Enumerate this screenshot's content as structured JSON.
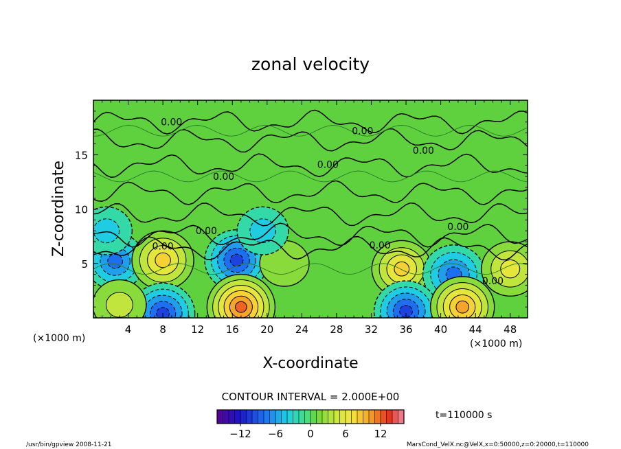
{
  "chart_data": {
    "type": "heatmap",
    "title": "zonal velocity",
    "xlabel": "X-coordinate",
    "ylabel": "Z-coordinate",
    "x_unit_left": "(×1000 m)",
    "x_unit_right": "(×1000 m)",
    "xlim": [
      0,
      50
    ],
    "ylim": [
      0,
      20
    ],
    "x_ticks": [
      4,
      8,
      12,
      16,
      20,
      24,
      28,
      32,
      36,
      40,
      44,
      48
    ],
    "y_ticks": [
      5,
      10,
      15
    ],
    "contour_interval_label": "CONTOUR INTERVAL = 2.000E+00",
    "contour_labels": [
      {
        "text": "0.00",
        "x": 9,
        "z": 18.0
      },
      {
        "text": "0.00",
        "x": 31,
        "z": 17.2
      },
      {
        "text": "0.00",
        "x": 38,
        "z": 15.4
      },
      {
        "text": "0.00",
        "x": 27,
        "z": 14.1
      },
      {
        "text": "0.00",
        "x": 15,
        "z": 13.0
      },
      {
        "text": "0.00",
        "x": 13,
        "z": 8.0
      },
      {
        "text": "0.00",
        "x": 42,
        "z": 8.4
      },
      {
        "text": "0.00",
        "x": 33,
        "z": 6.7
      },
      {
        "text": "0.00",
        "x": 8,
        "z": 6.6
      },
      {
        "text": "0.00",
        "x": 46,
        "z": 3.4
      }
    ],
    "features": [
      {
        "x": 2.5,
        "z": 5.2,
        "value": -7
      },
      {
        "x": 8.0,
        "z": 5.3,
        "value": 8
      },
      {
        "x": 16.5,
        "z": 5.3,
        "value": -9
      },
      {
        "x": 22.0,
        "z": 5.0,
        "value": 2
      },
      {
        "x": 35.5,
        "z": 4.5,
        "value": 7
      },
      {
        "x": 41.5,
        "z": 4.0,
        "value": -8
      },
      {
        "x": 48.0,
        "z": 4.5,
        "value": 6
      },
      {
        "x": 17.0,
        "z": 1.0,
        "value": 11
      },
      {
        "x": 8.0,
        "z": 0.4,
        "value": -9
      },
      {
        "x": 36.0,
        "z": 0.6,
        "value": -9
      },
      {
        "x": 42.5,
        "z": 1.0,
        "value": 9
      },
      {
        "x": 3.0,
        "z": 1.2,
        "value": 4
      },
      {
        "x": 1.5,
        "z": 8.0,
        "value": -3
      },
      {
        "x": 19.5,
        "z": 8.0,
        "value": -3
      }
    ],
    "colorbar": {
      "min": -16,
      "max": 16,
      "tick_values": [
        -12,
        -6,
        0,
        6,
        12
      ],
      "tick_labels": [
        "−12",
        "−6",
        "0",
        "6",
        "12"
      ]
    },
    "time_label": "t=110000 s"
  },
  "footer": {
    "left": "/usr/bin/gpview  2008-11-21",
    "right": "MarsCond_VelX.nc@VelX,x=0:50000,z=0:20000,t=110000"
  }
}
